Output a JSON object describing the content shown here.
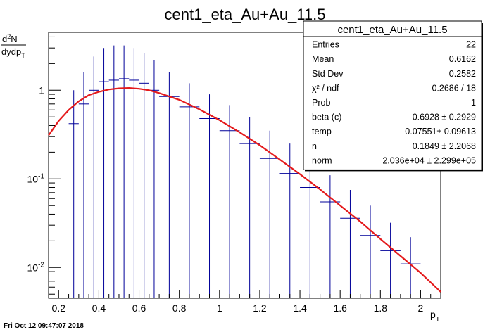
{
  "chart_data": {
    "type": "scatter",
    "title": "cent1_eta_Au+Au_11.5",
    "xlabel": "p_T",
    "ylabel": "d^2N / dydp_T",
    "xlim": [
      0.15,
      2.1
    ],
    "ylim": [
      0.0045,
      4.5
    ],
    "yscale": "log",
    "grid": false,
    "xticks": [
      "0.2",
      "0.4",
      "0.6",
      "0.8",
      "1",
      "1.2",
      "1.4",
      "1.6",
      "1.8",
      "2"
    ],
    "yticks": [
      {
        "base": "10",
        "exp": "-2",
        "value": 0.01
      },
      {
        "base": "10",
        "exp": "-1",
        "value": 0.1
      },
      {
        "base": "1",
        "exp": "",
        "value": 1
      }
    ],
    "points": [
      {
        "x": 0.275,
        "xerr": 0.025,
        "y": 0.42,
        "ylo": 0.0045,
        "yhi": 1.0
      },
      {
        "x": 0.325,
        "xerr": 0.025,
        "y": 0.7,
        "ylo": 0.0045,
        "yhi": 1.6
      },
      {
        "x": 0.375,
        "xerr": 0.025,
        "y": 1.0,
        "ylo": 0.0045,
        "yhi": 2.4
      },
      {
        "x": 0.425,
        "xerr": 0.025,
        "y": 1.25,
        "ylo": 0.0045,
        "yhi": 3.0
      },
      {
        "x": 0.475,
        "xerr": 0.025,
        "y": 1.3,
        "ylo": 0.0045,
        "yhi": 3.2
      },
      {
        "x": 0.525,
        "xerr": 0.025,
        "y": 1.35,
        "ylo": 0.0045,
        "yhi": 3.2
      },
      {
        "x": 0.575,
        "xerr": 0.025,
        "y": 1.3,
        "ylo": 0.0045,
        "yhi": 3.0
      },
      {
        "x": 0.625,
        "xerr": 0.025,
        "y": 1.2,
        "ylo": 0.0045,
        "yhi": 2.6
      },
      {
        "x": 0.675,
        "xerr": 0.025,
        "y": 1.0,
        "ylo": 0.0045,
        "yhi": 2.2
      },
      {
        "x": 0.75,
        "xerr": 0.05,
        "y": 0.85,
        "ylo": 0.0045,
        "yhi": 1.6
      },
      {
        "x": 0.85,
        "xerr": 0.05,
        "y": 0.65,
        "ylo": 0.0045,
        "yhi": 1.2
      },
      {
        "x": 0.95,
        "xerr": 0.05,
        "y": 0.48,
        "ylo": 0.0045,
        "yhi": 0.9
      },
      {
        "x": 1.05,
        "xerr": 0.05,
        "y": 0.35,
        "ylo": 0.0045,
        "yhi": 0.68
      },
      {
        "x": 1.15,
        "xerr": 0.05,
        "y": 0.25,
        "ylo": 0.0045,
        "yhi": 0.5
      },
      {
        "x": 1.25,
        "xerr": 0.05,
        "y": 0.17,
        "ylo": 0.0045,
        "yhi": 0.35
      },
      {
        "x": 1.35,
        "xerr": 0.05,
        "y": 0.115,
        "ylo": 0.0045,
        "yhi": 0.25
      },
      {
        "x": 1.45,
        "xerr": 0.05,
        "y": 0.08,
        "ylo": 0.0045,
        "yhi": 0.165
      },
      {
        "x": 1.55,
        "xerr": 0.05,
        "y": 0.055,
        "ylo": 0.0045,
        "yhi": 0.11
      },
      {
        "x": 1.65,
        "xerr": 0.05,
        "y": 0.036,
        "ylo": 0.0045,
        "yhi": 0.075
      },
      {
        "x": 1.75,
        "xerr": 0.05,
        "y": 0.023,
        "ylo": 0.0045,
        "yhi": 0.05
      },
      {
        "x": 1.85,
        "xerr": 0.05,
        "y": 0.0155,
        "ylo": 0.0045,
        "yhi": 0.032
      },
      {
        "x": 1.95,
        "xerr": 0.05,
        "y": 0.011,
        "ylo": 0.0045,
        "yhi": 0.022
      }
    ],
    "fit_curve": {
      "color": "#e41a1c",
      "x": [
        0.15,
        0.2,
        0.25,
        0.3,
        0.35,
        0.4,
        0.45,
        0.5,
        0.55,
        0.6,
        0.65,
        0.7,
        0.8,
        0.9,
        1.0,
        1.1,
        1.2,
        1.3,
        1.4,
        1.5,
        1.6,
        1.7,
        1.8,
        1.9,
        2.0,
        2.1
      ],
      "y": [
        0.31,
        0.45,
        0.6,
        0.75,
        0.88,
        0.96,
        1.02,
        1.05,
        1.06,
        1.04,
        1.0,
        0.93,
        0.78,
        0.61,
        0.46,
        0.335,
        0.24,
        0.165,
        0.113,
        0.076,
        0.05,
        0.033,
        0.021,
        0.0135,
        0.0087,
        0.0053
      ]
    },
    "marker_color": "#000099",
    "stats_box": {
      "title": "cent1_eta_Au+Au_11.5",
      "rows": [
        {
          "label": "Entries",
          "value": "22"
        },
        {
          "label": "Mean",
          "value": "0.6162"
        },
        {
          "label": "Std Dev",
          "value": "0.2582"
        },
        {
          "label": "χ² / ndf",
          "value": "0.2686 / 18"
        },
        {
          "label": "Prob",
          "value": "1"
        },
        {
          "label": "beta (c)",
          "value": "0.6928 ± 0.2929"
        },
        {
          "label": "temp",
          "value": "0.07551± 0.09613"
        },
        {
          "label": "n",
          "value": "0.1849 ± 2.2068"
        },
        {
          "label": "norm",
          "value": "2.036e+04 ± 2.299e+05"
        }
      ]
    }
  },
  "timestamp": "Fri Oct 12 09:47:07 2018"
}
